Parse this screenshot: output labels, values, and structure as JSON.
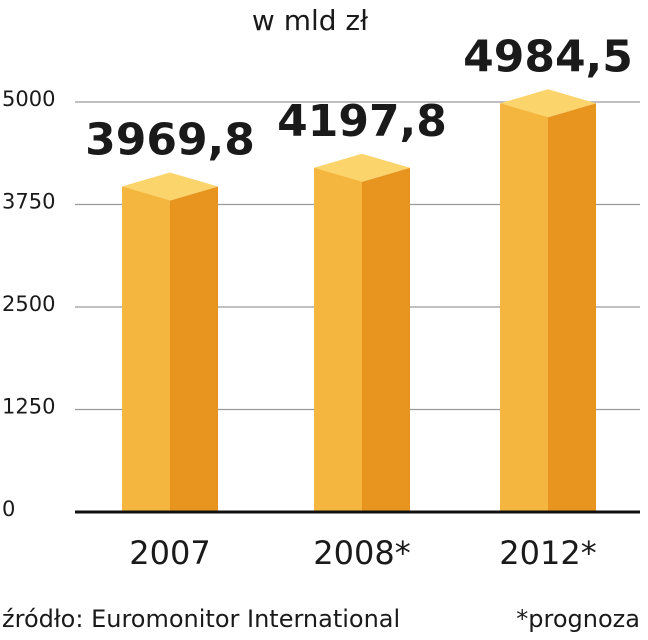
{
  "chart_data": {
    "type": "bar3d",
    "title": "w mld zł",
    "categories": [
      "2007",
      "2008*",
      "2012*"
    ],
    "values": [
      3969.8,
      4197.8,
      4984.5
    ],
    "value_labels": [
      "3969,8",
      "4197,8",
      "4984,5"
    ],
    "colors": {
      "front": "#f4b63f",
      "side": "#e8951f",
      "top": "#fcd46c"
    },
    "ylim": [
      0,
      5000
    ],
    "yticks": [
      0,
      1250,
      2500,
      3750,
      5000
    ],
    "grid": true,
    "source": "źródło: Euromonitor International",
    "note": "*prognoza"
  }
}
